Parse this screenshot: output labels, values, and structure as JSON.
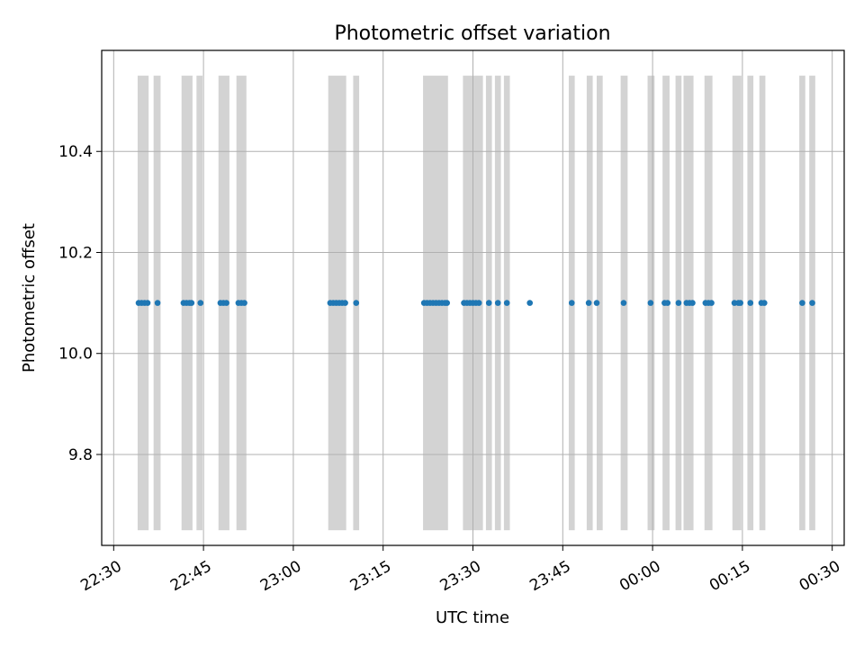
{
  "chart_data": {
    "type": "scatter",
    "title": "Photometric offset variation",
    "xlabel": "UTC time",
    "ylabel": "Photometric offset",
    "x_axis": "time",
    "xlim": [
      "22:28",
      "00:32"
    ],
    "ylim": [
      9.62,
      10.6
    ],
    "x_ticks": [
      "22:30",
      "22:45",
      "23:00",
      "23:15",
      "23:30",
      "23:45",
      "00:00",
      "00:15",
      "00:30"
    ],
    "y_ticks": [
      "9.8",
      "10.0",
      "10.2",
      "10.4"
    ],
    "y_tick_values": [
      9.8,
      10.0,
      10.2,
      10.4
    ],
    "grid": true,
    "colors": {
      "points": "#1f77b4",
      "bands": "#d3d3d3",
      "grid": "#b0b0b0"
    },
    "bands": {
      "y_range": [
        9.65,
        10.55
      ],
      "intervals": [
        [
          "22:34:00",
          "22:35:50"
        ],
        [
          "22:36:40",
          "22:37:50"
        ],
        [
          "22:41:20",
          "22:43:10"
        ],
        [
          "22:43:50",
          "22:44:50"
        ],
        [
          "22:47:30",
          "22:49:20"
        ],
        [
          "22:50:30",
          "22:52:10"
        ],
        [
          "23:05:50",
          "23:08:50"
        ],
        [
          "23:10:00",
          "23:11:00"
        ],
        [
          "23:21:40",
          "23:25:50"
        ],
        [
          "23:28:20",
          "23:31:40"
        ],
        [
          "23:32:10",
          "23:33:10"
        ],
        [
          "23:33:40",
          "23:34:40"
        ],
        [
          "23:35:10",
          "23:36:10"
        ],
        [
          "23:46:00",
          "23:47:00"
        ],
        [
          "23:49:00",
          "23:50:00"
        ],
        [
          "23:50:40",
          "23:51:40"
        ],
        [
          "23:54:40",
          "23:55:50"
        ],
        [
          "23:59:10",
          "00:00:20"
        ],
        [
          "00:01:40",
          "00:02:50"
        ],
        [
          "00:03:50",
          "00:04:50"
        ],
        [
          "00:05:10",
          "00:06:50"
        ],
        [
          "00:08:40",
          "00:10:00"
        ],
        [
          "00:13:20",
          "00:14:50"
        ],
        [
          "00:15:50",
          "00:16:50"
        ],
        [
          "00:17:50",
          "00:18:50"
        ],
        [
          "00:24:30",
          "00:25:30"
        ],
        [
          "00:26:10",
          "00:27:10"
        ]
      ]
    },
    "points": {
      "y": 10.1,
      "x": [
        "22:34:10",
        "22:34:40",
        "22:35:10",
        "22:35:40",
        "22:37:20",
        "22:41:40",
        "22:42:10",
        "22:42:40",
        "22:43:00",
        "22:44:30",
        "22:47:50",
        "22:48:20",
        "22:48:50",
        "22:50:50",
        "22:51:20",
        "22:51:50",
        "23:06:10",
        "23:06:40",
        "23:07:10",
        "23:07:40",
        "23:08:10",
        "23:08:40",
        "23:10:30",
        "23:21:50",
        "23:22:20",
        "23:22:50",
        "23:23:20",
        "23:23:50",
        "23:24:20",
        "23:24:50",
        "23:25:20",
        "23:25:40",
        "23:28:30",
        "23:29:00",
        "23:29:30",
        "23:30:00",
        "23:30:30",
        "23:31:00",
        "23:32:40",
        "23:34:10",
        "23:35:40",
        "23:39:30",
        "23:46:30",
        "23:49:20",
        "23:50:40",
        "23:55:10",
        "23:59:40",
        "00:02:00",
        "00:02:30",
        "00:04:20",
        "00:05:40",
        "00:06:10",
        "00:06:40",
        "00:08:50",
        "00:09:20",
        "00:09:50",
        "00:13:40",
        "00:14:20",
        "00:14:40",
        "00:16:20",
        "00:18:10",
        "00:18:40",
        "00:25:00",
        "00:26:40"
      ]
    }
  }
}
